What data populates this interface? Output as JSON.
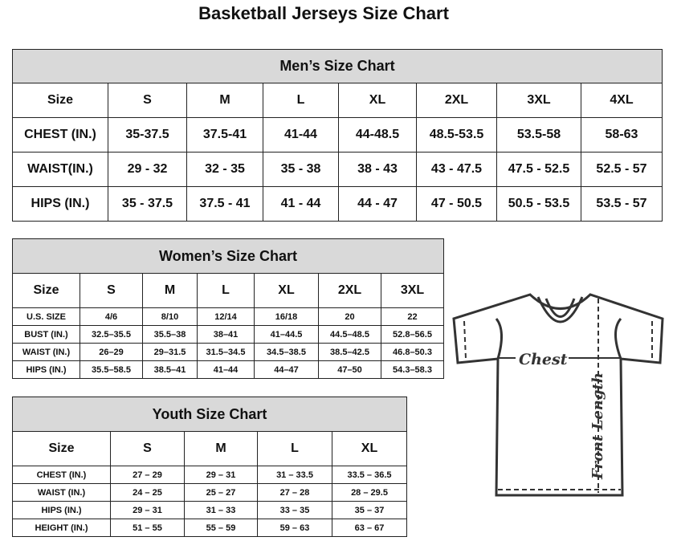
{
  "title": "Basketball Jerseys Size Chart",
  "mens": {
    "caption": "Men’s Size Chart",
    "header": [
      "Size",
      "S",
      "M",
      "L",
      "XL",
      "2XL",
      "3XL",
      "4XL"
    ],
    "rows": [
      [
        "CHEST (IN.)",
        "35-37.5",
        "37.5-41",
        "41-44",
        "44-48.5",
        "48.5-53.5",
        "53.5-58",
        "58-63"
      ],
      [
        "WAIST(IN.)",
        "29 - 32",
        "32 - 35",
        "35 - 38",
        "38 - 43",
        "43 - 47.5",
        "47.5 - 52.5",
        "52.5 - 57"
      ],
      [
        "HIPS (IN.)",
        "35 - 37.5",
        "37.5 - 41",
        "41 - 44",
        "44 - 47",
        "47 - 50.5",
        "50.5 - 53.5",
        "53.5 - 57"
      ]
    ]
  },
  "womens": {
    "caption": "Women’s Size Chart",
    "header": [
      "Size",
      "S",
      "M",
      "L",
      "XL",
      "2XL",
      "3XL"
    ],
    "rows": [
      [
        "U.S.  SIZE",
        "4/6",
        "8/10",
        "12/14",
        "16/18",
        "20",
        "22"
      ],
      [
        "BUST  (IN.)",
        "32.5–35.5",
        "35.5–38",
        "38–41",
        "41–44.5",
        "44.5–48.5",
        "52.8–56.5"
      ],
      [
        "WAIST  (IN.)",
        "26–29",
        "29–31.5",
        "31.5–34.5",
        "34.5–38.5",
        "38.5–42.5",
        "46.8–50.3"
      ],
      [
        "HIPS  (IN.)",
        "35.5–58.5",
        "38.5–41",
        "41–44",
        "44–47",
        "47–50",
        "54.3–58.3"
      ]
    ]
  },
  "youth": {
    "caption": "Youth Size Chart",
    "header": [
      "Size",
      "S",
      "M",
      "L",
      "XL"
    ],
    "rows": [
      [
        "CHEST  (IN.)",
        "27  –  29",
        "29  –  31",
        "31  –  33.5",
        "33.5  –  36.5"
      ],
      [
        "WAIST  (IN.)",
        "24  –  25",
        "25  –  27",
        "27  –  28",
        "28  –  29.5"
      ],
      [
        "HIPS  (IN.)",
        "29  –  31",
        "31  –  33",
        "33  –  35",
        "35  –  37"
      ],
      [
        "HEIGHT  (IN.)",
        "51  –  55",
        "55  –  59",
        "59  –  63",
        "63  –  67"
      ]
    ]
  },
  "diagram": {
    "chest_label": "Chest",
    "length_label": "Front Length"
  }
}
